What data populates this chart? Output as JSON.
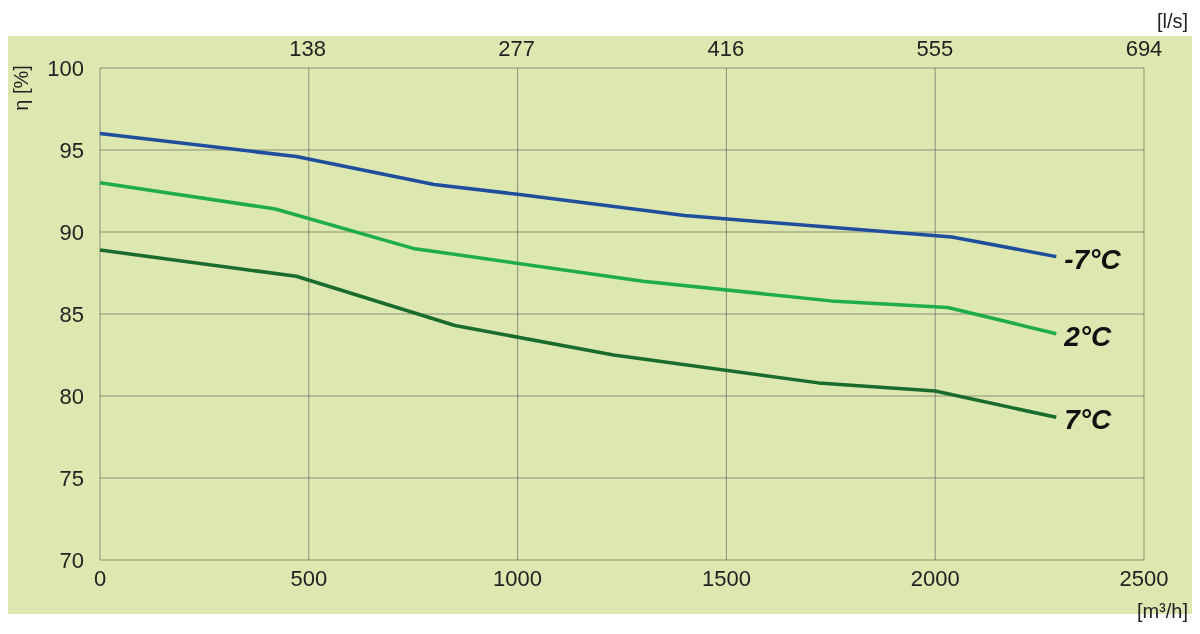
{
  "chart_data": {
    "type": "line",
    "ylabel": "η [%]",
    "xlabel": "[m³/h]",
    "x2label": "[l/s]",
    "xlim": [
      0,
      2500
    ],
    "xticks": [
      0,
      500,
      1000,
      1500,
      2000,
      2500
    ],
    "x2lim": [
      0,
      694
    ],
    "x2ticks": [
      138,
      277,
      416,
      555,
      694
    ],
    "ylim": [
      70,
      100
    ],
    "yticks": [
      70,
      75,
      80,
      85,
      90,
      95,
      100
    ],
    "grid": true,
    "legend": false,
    "line_style": "solid",
    "marker": "none",
    "series": [
      {
        "name": "-7°C",
        "color": "#1f4e9c",
        "x": [
          0,
          470,
          800,
          1000,
          1400,
          2040,
          2290
        ],
        "values": [
          96,
          94.6,
          92.9,
          92.3,
          91.0,
          89.7,
          88.5
        ]
      },
      {
        "name": "2°C",
        "color": "#1fad4b",
        "x": [
          0,
          420,
          750,
          1300,
          1750,
          2030,
          2290
        ],
        "values": [
          93,
          91.4,
          89,
          87,
          85.8,
          85.4,
          83.8
        ]
      },
      {
        "name": "7°C",
        "color": "#1a6b2e",
        "x": [
          0,
          470,
          850,
          1230,
          1720,
          2000,
          2290
        ],
        "values": [
          88.9,
          87.3,
          84.3,
          82.5,
          80.8,
          80.3,
          78.7
        ]
      }
    ]
  }
}
